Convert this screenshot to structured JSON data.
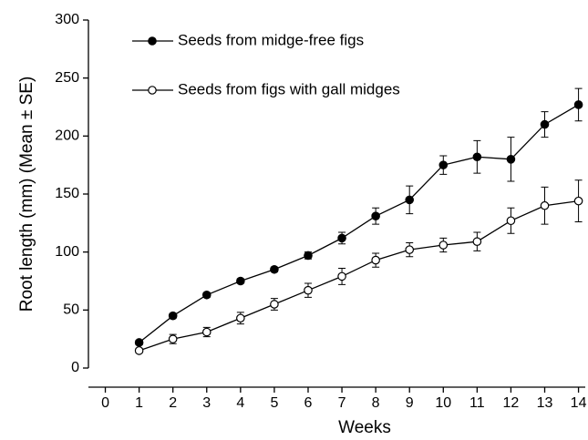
{
  "chart_data": {
    "type": "line",
    "xlabel": "Weeks",
    "ylabel": "Root length (mm) (Mean ± SE)",
    "x": [
      1,
      2,
      3,
      4,
      5,
      6,
      7,
      8,
      9,
      10,
      11,
      12,
      13,
      14
    ],
    "series": [
      {
        "name": "Seeds from midge-free figs",
        "color": "#000000",
        "marker_fill": "#000000",
        "values": [
          22,
          45,
          63,
          75,
          85,
          97,
          112,
          131,
          145,
          175,
          182,
          180,
          210,
          227
        ],
        "errors": [
          2,
          2,
          2,
          2,
          2,
          3,
          5,
          7,
          12,
          8,
          14,
          19,
          11,
          14
        ]
      },
      {
        "name": "Seeds from figs with gall midges",
        "color": "#000000",
        "marker_fill": "#ffffff",
        "values": [
          15,
          25,
          31,
          43,
          55,
          67,
          79,
          93,
          102,
          106,
          109,
          127,
          140,
          144
        ],
        "errors": [
          2,
          4,
          4,
          5,
          5,
          6,
          7,
          6,
          6,
          6,
          8,
          11,
          16,
          18
        ]
      }
    ],
    "xlim": [
      -0.5,
      14.2
    ],
    "xticks": [
      0,
      1,
      2,
      3,
      4,
      5,
      6,
      7,
      8,
      9,
      10,
      11,
      12,
      13,
      14
    ],
    "ylim": [
      0,
      300
    ],
    "yticks": [
      0,
      50,
      100,
      150,
      200,
      250,
      300
    ],
    "grid": false,
    "legend": "upper left"
  }
}
